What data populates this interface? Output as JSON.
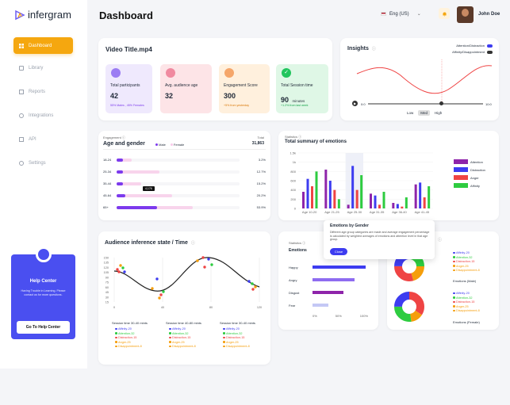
{
  "app": {
    "name": "infergram"
  },
  "sidebar": {
    "items": [
      {
        "label": "Dashboard",
        "active": true
      },
      {
        "label": "Library"
      },
      {
        "label": "Reports"
      },
      {
        "label": "Integrations"
      },
      {
        "label": "API"
      },
      {
        "label": "Settings"
      }
    ],
    "help": {
      "title": "Help Center",
      "text": "Having Trouble in Learning. Please contact us for more questions.",
      "button": "Go To Help Center"
    }
  },
  "header": {
    "title": "Dashboard",
    "language": "Eng (US)",
    "user": "John Doe"
  },
  "video": {
    "title": "Video Title.mp4",
    "stats": [
      {
        "label": "Total participants",
        "value": "42",
        "sub": "55% Males , 45% Females"
      },
      {
        "label": "Avg. audience age",
        "value": "32",
        "sub": ""
      },
      {
        "label": "Engagement Score",
        "value": "300",
        "sub": "+5% from yesterday"
      },
      {
        "label": "Total Session time",
        "value": "90",
        "unit": "minutes",
        "sub": "+1.2% from last week"
      }
    ]
  },
  "insights": {
    "title": "Insights",
    "toggles": [
      "Attention/Distraction",
      "Affinity/Disappointment"
    ],
    "time_start": "0:0",
    "time_end": "10:0",
    "levels": [
      "Low",
      "Med",
      "High"
    ],
    "active_level": "Med"
  },
  "age_gender": {
    "caption": "Engagement",
    "title": "Age and gender",
    "legend": [
      "Male",
      "Female"
    ],
    "total_label": "Total",
    "total": "31,863",
    "tooltip": "4,176",
    "rows": [
      {
        "label": "18-24",
        "male": 0.05,
        "female": 0.12,
        "pct": "3.2%"
      },
      {
        "label": "25-34",
        "male": 0.05,
        "female": 0.35,
        "pct": "12.7%"
      },
      {
        "label": "35-44",
        "male": 0.05,
        "female": 0.2,
        "pct": "15.2%"
      },
      {
        "label": "45-64",
        "male": 0.07,
        "female": 0.45,
        "pct": "20.2%"
      },
      {
        "label": "65+",
        "male": 0.33,
        "female": 0.62,
        "pct": "53.9%"
      }
    ]
  },
  "emotions_summary": {
    "caption": "Statistics",
    "title": "Total summary of emotions",
    "legend": [
      "Attention",
      "Distraction",
      "Anger",
      "Affinity"
    ],
    "colors": [
      "#8e24aa",
      "#3d3cf0",
      "#ef4444",
      "#2ecc40"
    ],
    "chart_data": {
      "type": "bar",
      "categories": [
        "Age 10-20",
        "Age 21-25",
        "Age 25-30",
        "Age 31-35",
        "Age 36-40",
        "Age 41-45"
      ],
      "yticks": [
        "1.5k",
        "1k",
        "800",
        "600",
        "400",
        "200",
        "0"
      ],
      "ylim": [
        0,
        1500
      ],
      "series": [
        {
          "name": "Attention",
          "values": [
            450,
            1050,
            100,
            400,
            150,
            650
          ]
        },
        {
          "name": "Distraction",
          "values": [
            800,
            750,
            1150,
            350,
            120,
            700
          ]
        },
        {
          "name": "Anger",
          "values": [
            600,
            500,
            500,
            100,
            50,
            300
          ]
        },
        {
          "name": "Affinity",
          "values": [
            1000,
            250,
            900,
            450,
            300,
            600
          ]
        }
      ]
    }
  },
  "gender_popup": {
    "title": "Emotions by Gender",
    "text": "Different age group categories are made and average engagement percentage is calculated by weighted averages of emotions and attention level in that age group.",
    "button": "Close"
  },
  "inference": {
    "title": "Audience inference state / Time",
    "yticks": [
      "150",
      "135",
      "120",
      "105",
      "90",
      "75",
      "60",
      "45",
      "30",
      "15"
    ],
    "xticks": [
      "0",
      "40",
      "80",
      "120"
    ],
    "sessions": [
      {
        "title": "Session time 30-40 mints",
        "items": [
          "Affinity-20",
          "Attention-32",
          "Distraction-15",
          "Anger-25",
          "Disappointment-8"
        ]
      },
      {
        "title": "Session time 40-80 mints",
        "items": [
          "Affinity-20",
          "Attention-32",
          "Distraction-15",
          "Anger-25",
          "Disappointment-8"
        ]
      },
      {
        "title": "Session time 30-40 mints",
        "items": [
          "Affinity-20",
          "Attention-32",
          "Distraction-15",
          "Anger-25",
          "Disappointment-8"
        ]
      }
    ],
    "item_colors": [
      "#3d3cf0",
      "#2ecc40",
      "#ef4444",
      "#f59e0b",
      "#f59e0b"
    ]
  },
  "emotions_gender": {
    "caption": "Statistics",
    "title": "Emotions",
    "bars": [
      {
        "label": "Happy",
        "value": 0.95,
        "color": "#3d3cf0"
      },
      {
        "label": "Angry",
        "value": 0.75,
        "color": "#8e6cf0"
      },
      {
        "label": "Disgust",
        "value": 0.55,
        "color": "#8e24aa"
      },
      {
        "label": "Fear",
        "value": 0.28,
        "color": "#c4c8f5"
      }
    ],
    "xticks": [
      "0%",
      "50%",
      "100%"
    ]
  },
  "donuts": {
    "male": {
      "label": "Emotions (Male)",
      "items": [
        "Affinity-20",
        "Attention-32",
        "Distraction-15",
        "Anger-25",
        "Disappointment-8"
      ]
    },
    "female": {
      "label": "Emotions (Female)",
      "items": [
        "Affinity-20",
        "Attention-32",
        "Distraction-15",
        "Anger-25",
        "Disappointment-8"
      ]
    },
    "item_colors": [
      "#3d3cf0",
      "#2ecc40",
      "#ef4444",
      "#f59e0b",
      "#f59e0b"
    ]
  }
}
